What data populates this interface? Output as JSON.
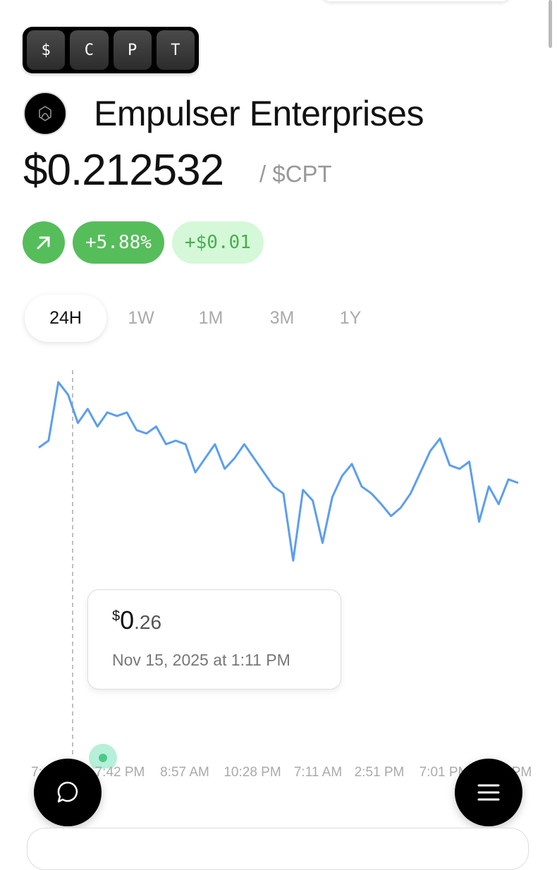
{
  "ticker_keys": [
    "$",
    "C",
    "P",
    "T"
  ],
  "company": {
    "name": "Empulser Enterprises",
    "logo_icon": "hexagon-logo-icon"
  },
  "price": {
    "value": "$0.212532",
    "unit": "/ $CPT"
  },
  "change": {
    "direction_icon": "arrow-up-right-icon",
    "percent": "+5.88%",
    "absolute": "+$0.01",
    "color": "#56bd5b",
    "light_color": "#d4f8d8"
  },
  "timeframes": [
    {
      "label": "24H",
      "active": true
    },
    {
      "label": "1W",
      "active": false
    },
    {
      "label": "1M",
      "active": false
    },
    {
      "label": "3M",
      "active": false
    },
    {
      "label": "1Y",
      "active": false
    }
  ],
  "tooltip": {
    "currency": "$",
    "int": "0",
    "dec": ".26",
    "date": "Nov 15, 2025 at 1:11 PM"
  },
  "chart_data": {
    "type": "line",
    "line_color": "#5b9ef0",
    "x_tick_labels": [
      "7:",
      "7:42 PM",
      "8:57 AM",
      "10:28 PM",
      "7:11 AM",
      "2:51 PM",
      "7:01 PM",
      "PM"
    ],
    "values": [
      0.2363,
      0.241,
      0.2804,
      0.2719,
      0.2529,
      0.2624,
      0.2505,
      0.26,
      0.2576,
      0.26,
      0.2481,
      0.2458,
      0.2505,
      0.2386,
      0.241,
      0.2386,
      0.2196,
      0.2291,
      0.2386,
      0.222,
      0.2291,
      0.2386,
      0.2291,
      0.2196,
      0.2101,
      0.2054,
      0.1602,
      0.2078,
      0.2006,
      0.1721,
      0.203,
      0.2173,
      0.2253,
      0.2101,
      0.2054,
      0.1982,
      0.1902,
      0.1959,
      0.2054,
      0.2196,
      0.2339,
      0.2424,
      0.2244,
      0.222,
      0.2268,
      0.1864,
      0.2101,
      0.1982,
      0.2149,
      0.2125
    ],
    "hover_index": 7,
    "grid": false
  },
  "fabs": {
    "chat_icon": "chat-bubble-icon",
    "menu_icon": "hamburger-menu-icon"
  }
}
